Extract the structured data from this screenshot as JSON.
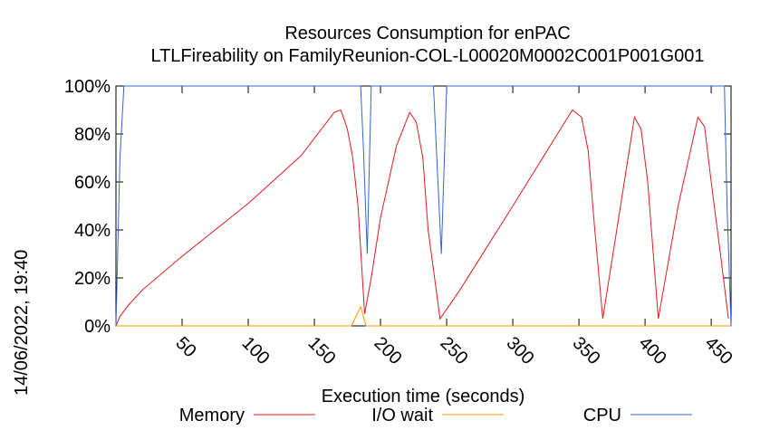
{
  "chart_data": {
    "type": "line",
    "title": "Resources Consumption for enPAC",
    "subtitle": "LTLFireability on FamilyReunion-COL-L00020M0002C001P001G001",
    "xlabel": "Execution time (seconds)",
    "ylabel": "",
    "timestamp": "14/06/2022, 19:40",
    "xlim": [
      0,
      465
    ],
    "ylim": [
      0,
      100
    ],
    "x_ticks": [
      50,
      100,
      150,
      200,
      250,
      300,
      350,
      400,
      450
    ],
    "y_ticks": [
      0,
      20,
      40,
      60,
      80,
      100
    ],
    "y_tick_labels": [
      "0%",
      "20%",
      "40%",
      "60%",
      "80%",
      "100%"
    ],
    "grid": false,
    "legend_position": "bottom",
    "series": [
      {
        "name": "Memory",
        "color": "#e41a1c",
        "points": [
          [
            0,
            0
          ],
          [
            3,
            4
          ],
          [
            10,
            9
          ],
          [
            20,
            15
          ],
          [
            50,
            29
          ],
          [
            100,
            51
          ],
          [
            140,
            71
          ],
          [
            165,
            89
          ],
          [
            170,
            90
          ],
          [
            175,
            82
          ],
          [
            179,
            70
          ],
          [
            183,
            50
          ],
          [
            188,
            5
          ],
          [
            193,
            20
          ],
          [
            200,
            45
          ],
          [
            212,
            75
          ],
          [
            222,
            89
          ],
          [
            227,
            85
          ],
          [
            232,
            70
          ],
          [
            236,
            40
          ],
          [
            245,
            3
          ],
          [
            260,
            15
          ],
          [
            300,
            50
          ],
          [
            345,
            90
          ],
          [
            352,
            87
          ],
          [
            357,
            73
          ],
          [
            362,
            40
          ],
          [
            368,
            3
          ],
          [
            380,
            45
          ],
          [
            392,
            87
          ],
          [
            397,
            82
          ],
          [
            402,
            60
          ],
          [
            410,
            3
          ],
          [
            425,
            50
          ],
          [
            440,
            87
          ],
          [
            445,
            83
          ],
          [
            450,
            60
          ],
          [
            457,
            30
          ],
          [
            463,
            3
          ]
        ]
      },
      {
        "name": "I/O wait",
        "color": "#ff9900",
        "points": [
          [
            0,
            0
          ],
          [
            178,
            0
          ],
          [
            185,
            8
          ],
          [
            189,
            0
          ],
          [
            465,
            0
          ]
        ]
      },
      {
        "name": "CPU",
        "color": "#3366cc",
        "points": [
          [
            0,
            0
          ],
          [
            3,
            70
          ],
          [
            6,
            100
          ],
          [
            185,
            100
          ],
          [
            187,
            75
          ],
          [
            190,
            30
          ],
          [
            193,
            100
          ],
          [
            240,
            100
          ],
          [
            243,
            65
          ],
          [
            246,
            30
          ],
          [
            250,
            100
          ],
          [
            460,
            100
          ],
          [
            462,
            50
          ],
          [
            465,
            0
          ]
        ]
      }
    ]
  }
}
